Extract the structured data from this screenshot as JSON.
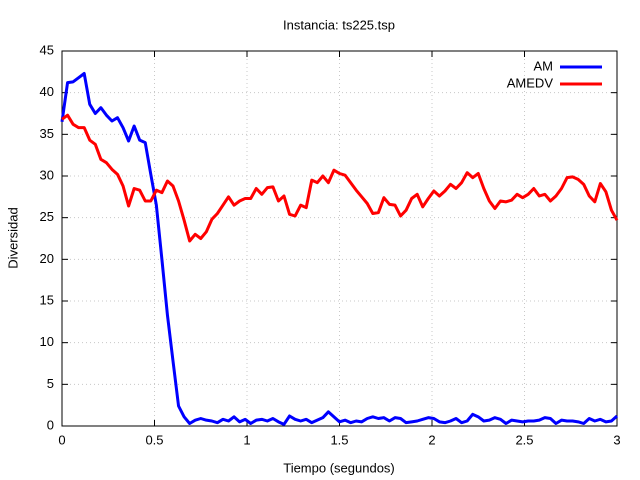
{
  "chart_data": {
    "type": "line",
    "title": "Instancia: ts225.tsp",
    "xlabel": "Tiempo (segundos)",
    "ylabel": "Diversidad",
    "xlim": [
      0,
      3
    ],
    "ylim": [
      0,
      45
    ],
    "xticks": [
      0,
      0.5,
      1,
      1.5,
      2,
      2.5,
      3
    ],
    "yticks": [
      0,
      5,
      10,
      15,
      20,
      25,
      30,
      35,
      40,
      45
    ],
    "grid": true,
    "legend": "top-right",
    "x": [
      0,
      0.03,
      0.06,
      0.09,
      0.12,
      0.15,
      0.18,
      0.21,
      0.24,
      0.27,
      0.3,
      0.33,
      0.36,
      0.39,
      0.42,
      0.45,
      0.48,
      0.51,
      0.54,
      0.57,
      0.6,
      0.63,
      0.66,
      0.69,
      0.72,
      0.75,
      0.78,
      0.81,
      0.84,
      0.87,
      0.9,
      0.93,
      0.96,
      0.99,
      1.02,
      1.05,
      1.08,
      1.11,
      1.14,
      1.17,
      1.2,
      1.23,
      1.26,
      1.29,
      1.32,
      1.35,
      1.38,
      1.41,
      1.44,
      1.47,
      1.5,
      1.53,
      1.56,
      1.59,
      1.62,
      1.65,
      1.68,
      1.71,
      1.74,
      1.77,
      1.8,
      1.83,
      1.86,
      1.89,
      1.92,
      1.95,
      1.98,
      2.01,
      2.04,
      2.07,
      2.1,
      2.13,
      2.16,
      2.19,
      2.22,
      2.25,
      2.28,
      2.31,
      2.34,
      2.37,
      2.4,
      2.43,
      2.46,
      2.49,
      2.52,
      2.55,
      2.58,
      2.61,
      2.64,
      2.67,
      2.7,
      2.73,
      2.76,
      2.79,
      2.82,
      2.85,
      2.88,
      2.91,
      2.94,
      2.97,
      3
    ],
    "series": [
      {
        "name": "AM",
        "color": "#0000ff",
        "values": [
          36.5,
          41.2,
          41.3,
          41.8,
          42.3,
          38.6,
          37.5,
          38.2,
          37.3,
          36.6,
          37,
          35.8,
          34.2,
          36,
          34.3,
          34,
          30.2,
          26.5,
          20,
          13.3,
          7.8,
          2.4,
          1.1,
          0.3,
          0.7,
          0.9,
          0.7,
          0.6,
          0.4,
          0.8,
          0.6,
          1.1,
          0.5,
          0.8,
          0.3,
          0.7,
          0.8,
          0.6,
          0.9,
          0.5,
          0.2,
          1.2,
          0.8,
          0.6,
          0.8,
          0.4,
          0.7,
          1.0,
          1.7,
          1.1,
          0.5,
          0.7,
          0.4,
          0.6,
          0.5,
          0.9,
          1.1,
          0.9,
          1.0,
          0.6,
          1.0,
          0.9,
          0.4,
          0.5,
          0.6,
          0.8,
          1.0,
          0.9,
          0.5,
          0.4,
          0.6,
          0.9,
          0.4,
          0.6,
          1.4,
          1.1,
          0.6,
          0.7,
          1.0,
          0.8,
          0.3,
          0.7,
          0.6,
          0.5,
          0.6,
          0.6,
          0.7,
          1.0,
          0.9,
          0.3,
          0.7,
          0.6,
          0.6,
          0.5,
          0.3,
          0.9,
          0.6,
          0.8,
          0.5,
          0.6,
          1.2
        ]
      },
      {
        "name": "AMEDV",
        "color": "#ff0000",
        "values": [
          36.8,
          37.3,
          36.2,
          35.8,
          35.8,
          34.3,
          33.8,
          32,
          31.6,
          30.8,
          30.2,
          28.8,
          26.4,
          28.5,
          28.3,
          27,
          27,
          28.3,
          28,
          29.4,
          28.8,
          27,
          24.7,
          22.2,
          23,
          22.5,
          23.3,
          24.8,
          25.5,
          26.5,
          27.5,
          26.5,
          27,
          27.3,
          27.3,
          28.5,
          27.8,
          28.6,
          28.7,
          27,
          27.6,
          25.4,
          25.2,
          26.5,
          26.2,
          29.5,
          29.2,
          30,
          29.2,
          30.7,
          30.3,
          30.1,
          29.2,
          28.3,
          27.5,
          26.7,
          25.5,
          25.6,
          27.4,
          26.6,
          26.5,
          25.2,
          25.9,
          27.3,
          27.8,
          26.3,
          27.3,
          28.2,
          27.6,
          28.2,
          29,
          28.5,
          29.2,
          30.4,
          29.8,
          30.3,
          28.5,
          27,
          26.1,
          27,
          26.9,
          27.1,
          27.8,
          27.4,
          27.8,
          28.5,
          27.6,
          27.8,
          27,
          27.6,
          28.5,
          29.8,
          29.9,
          29.6,
          29,
          27.6,
          26.9,
          29.1,
          28.1,
          25.9,
          24.7
        ]
      }
    ]
  }
}
